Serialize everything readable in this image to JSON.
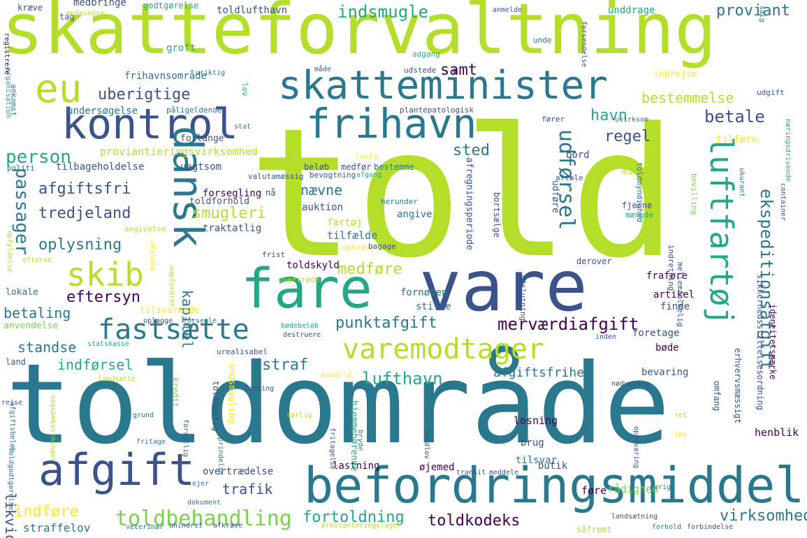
{
  "palette": {
    "dark_purple": "#440154",
    "indigo": "#3b528b",
    "teal": "#2a788e",
    "green": "#22a884",
    "light_green": "#7ad151",
    "yellow": "#fde725",
    "yellow_green": "#b5de2b"
  },
  "words": [
    {
      "text": "skatteforvaltning"
    },
    {
      "text": "told"
    },
    {
      "text": "toldområde"
    },
    {
      "text": "vare"
    },
    {
      "text": "befordringsmiddel"
    },
    {
      "text": "kontrol"
    },
    {
      "text": "afgift"
    },
    {
      "text": "fare"
    },
    {
      "text": "dansk"
    },
    {
      "text": "skatteminister"
    },
    {
      "text": "eu"
    },
    {
      "text": "frihavn"
    },
    {
      "text": "luftfartøj"
    },
    {
      "text": "varemodtager"
    },
    {
      "text": "fastsætte"
    },
    {
      "text": "skib"
    },
    {
      "text": "toldbehandling"
    },
    {
      "text": "passager"
    },
    {
      "text": "person"
    },
    {
      "text": "udførsel"
    },
    {
      "text": "indsmugle"
    },
    {
      "text": "proviant"
    },
    {
      "text": "uberigtige"
    },
    {
      "text": "betale"
    },
    {
      "text": "ekspeditionsafgift"
    },
    {
      "text": "merværdiafgift"
    },
    {
      "text": "punktafgift"
    },
    {
      "text": "lufthavn"
    },
    {
      "text": "fortoldning"
    },
    {
      "text": "toldkodeks"
    },
    {
      "text": "virksomhed"
    },
    {
      "text": "smugleri"
    },
    {
      "text": "tredjeland"
    },
    {
      "text": "oplysning"
    },
    {
      "text": "afgiftsfri"
    },
    {
      "text": "havn"
    },
    {
      "text": "regel"
    },
    {
      "text": "sted"
    },
    {
      "text": "bestemmelse"
    },
    {
      "text": "samt"
    },
    {
      "text": "medføre"
    },
    {
      "text": "eftersyn"
    },
    {
      "text": "betaling"
    },
    {
      "text": "standse"
    },
    {
      "text": "straf"
    },
    {
      "text": "indførsel"
    },
    {
      "text": "indføre"
    },
    {
      "text": "trafik"
    },
    {
      "text": "likvid"
    },
    {
      "text": "kapitel"
    },
    {
      "text": "nævne"
    },
    {
      "text": "afgiftsfrihed"
    },
    {
      "text": "straffelov"
    },
    {
      "text": "toldlufthavn"
    },
    {
      "text": "medbringe"
    },
    {
      "text": "kræve"
    },
    {
      "text": "tag"
    },
    {
      "text": "godtgørelse"
    },
    {
      "text": "unddrage"
    },
    {
      "text": "groft"
    },
    {
      "text": "frihavnsområde"
    },
    {
      "text": "undersøgelse"
    },
    {
      "text": "påligeldende"
    },
    {
      "text": "proviantieringsvirksomhed"
    },
    {
      "text": "tilbageholdelse"
    },
    {
      "text": "uagtsom"
    },
    {
      "text": "forsegling"
    },
    {
      "text": "toldforhold"
    },
    {
      "text": "auktion"
    },
    {
      "text": "traktatlig"
    },
    {
      "text": "angive"
    },
    {
      "text": "tilfælde"
    },
    {
      "text": "toldskyld"
    },
    {
      "text": "fornøden"
    },
    {
      "text": "stille"
    },
    {
      "text": "artikel"
    },
    {
      "text": "finde"
    },
    {
      "text": "fraføre"
    },
    {
      "text": "foretage"
    },
    {
      "text": "bøde"
    },
    {
      "text": "bevaring"
    },
    {
      "text": "omfang"
    },
    {
      "text": "losning"
    },
    {
      "text": "brug"
    },
    {
      "text": "tilsvar"
    },
    {
      "text": "henblik"
    },
    {
      "text": "lastning"
    },
    {
      "text": "øjemed"
    },
    {
      "text": "butik"
    },
    {
      "text": "føre"
    },
    {
      "text": "rådighed"
    },
    {
      "text": "overtrædelse"
    },
    {
      "text": "anvendelse"
    },
    {
      "text": "land"
    },
    {
      "text": "ankomst"
    },
    {
      "text": "lokale"
    },
    {
      "text": "tilsvarende"
    },
    {
      "text": "beløb"
    },
    {
      "text": "medfør"
    },
    {
      "text": "bestemme"
    },
    {
      "text": "plantepatologisk"
    },
    {
      "text": "bord"
    },
    {
      "text": "tilføre"
    },
    {
      "text": "bevilling"
    },
    {
      "text": "middel"
    },
    {
      "text": "toldmyndighed"
    },
    {
      "text": "udføre"
    },
    {
      "text": "bortsælge"
    },
    {
      "text": "afregningsperiode"
    },
    {
      "text": "indretning"
    },
    {
      "text": "mellemfolkelig"
    },
    {
      "text": "sikkerhedsstillelsesordning"
    },
    {
      "text": "erhvervsmæssigt"
    },
    {
      "text": "identitetsmærke"
    },
    {
      "text": "hjemmehørende"
    },
    {
      "text": "kredit"
    },
    {
      "text": "toldmæssig"
    },
    {
      "text": "indsmugling"
    },
    {
      "text": "lov"
    },
    {
      "text": "forlange"
    },
    {
      "text": "adgang"
    },
    {
      "text": "udstede"
    },
    {
      "text": "indrejse"
    },
    {
      "text": "udgift"
    },
    {
      "text": "uvirksom"
    },
    {
      "text": "fører"
    },
    {
      "text": "stat"
    },
    {
      "text": "politi"
    },
    {
      "text": "organisation"
    },
    {
      "text": "registrere"
    },
    {
      "text": "valutamæssig"
    },
    {
      "text": "bevogtning"
    },
    {
      "text": "laste"
    },
    {
      "text": "afgang"
    },
    {
      "text": "aftale"
    },
    {
      "text": "ukurant"
    },
    {
      "text": "container"
    },
    {
      "text": "næringsdrivende"
    },
    {
      "text": "fjerne"
    },
    {
      "text": "mængde"
    },
    {
      "text": "herunder"
    },
    {
      "text": "fartøj"
    },
    {
      "text": "opkræve"
    },
    {
      "text": "bagage"
    },
    {
      "text": "frist"
    },
    {
      "text": "overtræde"
    },
    {
      "text": "afslutning"
    },
    {
      "text": "derover"
    },
    {
      "text": "uopfordret"
    },
    {
      "text": "skyldig"
    },
    {
      "text": "angivelse"
    },
    {
      "text": "opfyldelse"
    },
    {
      "text": "efterse"
    },
    {
      "text": "oplægge"
    },
    {
      "text": "forsegle"
    },
    {
      "text": "bødebeløb"
    },
    {
      "text": "destruere"
    },
    {
      "text": "statskasse"
    },
    {
      "text": "urealisabel"
    },
    {
      "text": "inden"
    },
    {
      "text": "landsætte"
    },
    {
      "text": "ladning"
    },
    {
      "text": "behørig"
    },
    {
      "text": "nødvendig"
    },
    {
      "text": "afgiftsbeløb"
    },
    {
      "text": "sagsomkostninger"
    },
    {
      "text": "grund"
    },
    {
      "text": "forsætlig"
    },
    {
      "text": "oprindelse"
    },
    {
      "text": "særlig"
    },
    {
      "text": "bryde"
    },
    {
      "text": "fritagelse"
    },
    {
      "text": "toldlov"
    },
    {
      "text": "ret"
    },
    {
      "text": "ske"
    },
    {
      "text": "opbevaring"
    },
    {
      "text": "fritage"
    },
    {
      "text": "rejse"
    },
    {
      "text": "toldgodtgørelse"
    },
    {
      "text": "ejer"
    },
    {
      "text": "dokument"
    },
    {
      "text": "transit"
    },
    {
      "text": "meddele"
    },
    {
      "text": "øvrig"
    },
    {
      "text": "veterinær"
    },
    {
      "text": "uhindret"
    },
    {
      "text": "afkræve"
    },
    {
      "text": "provianteringslager"
    },
    {
      "text": "landsætning"
    },
    {
      "text": "såfremt"
    },
    {
      "text": "forhold"
    },
    {
      "text": "forbindelse"
    },
    {
      "text": "nå"
    },
    {
      "text": "medmindre"
    },
    {
      "text": "uriktig"
    },
    {
      "text": "måde"
    },
    {
      "text": "anmelde"
    },
    {
      "text": "salg"
    },
    {
      "text": "unde"
    },
    {
      "text": "forsendelse"
    }
  ]
}
